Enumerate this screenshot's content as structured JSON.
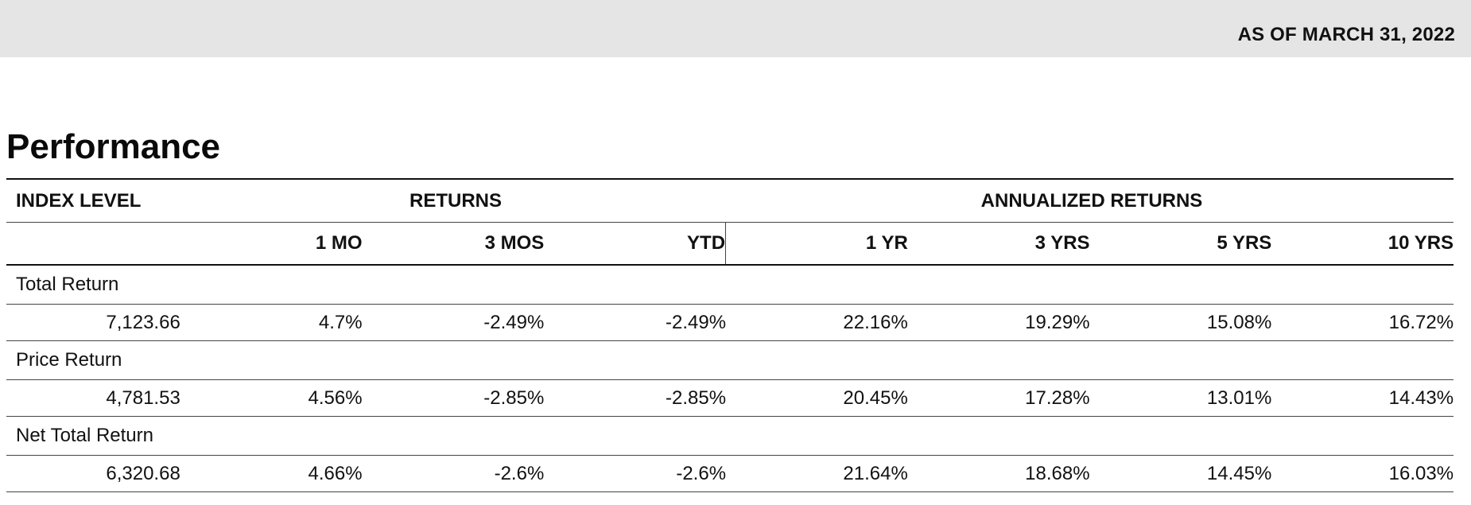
{
  "header": {
    "as_of": "AS OF MARCH 31, 2022"
  },
  "section_title": "Performance",
  "table": {
    "group_headers": {
      "index_level": "INDEX LEVEL",
      "returns": "RETURNS",
      "annualized_returns": "ANNUALIZED RETURNS"
    },
    "columns": [
      "1 MO",
      "3 MOS",
      "YTD",
      "1 YR",
      "3 YRS",
      "5 YRS",
      "10 YRS"
    ],
    "rows": [
      {
        "label": "Total Return",
        "index_level": "7,123.66",
        "values": [
          "4.7%",
          "-2.49%",
          "-2.49%",
          "22.16%",
          "19.29%",
          "15.08%",
          "16.72%"
        ]
      },
      {
        "label": "Price Return",
        "index_level": "4,781.53",
        "values": [
          "4.56%",
          "-2.85%",
          "-2.85%",
          "20.45%",
          "17.28%",
          "13.01%",
          "14.43%"
        ]
      },
      {
        "label": "Net Total Return",
        "index_level": "6,320.68",
        "values": [
          "4.66%",
          "-2.6%",
          "-2.6%",
          "21.64%",
          "18.68%",
          "14.45%",
          "16.03%"
        ]
      }
    ]
  }
}
